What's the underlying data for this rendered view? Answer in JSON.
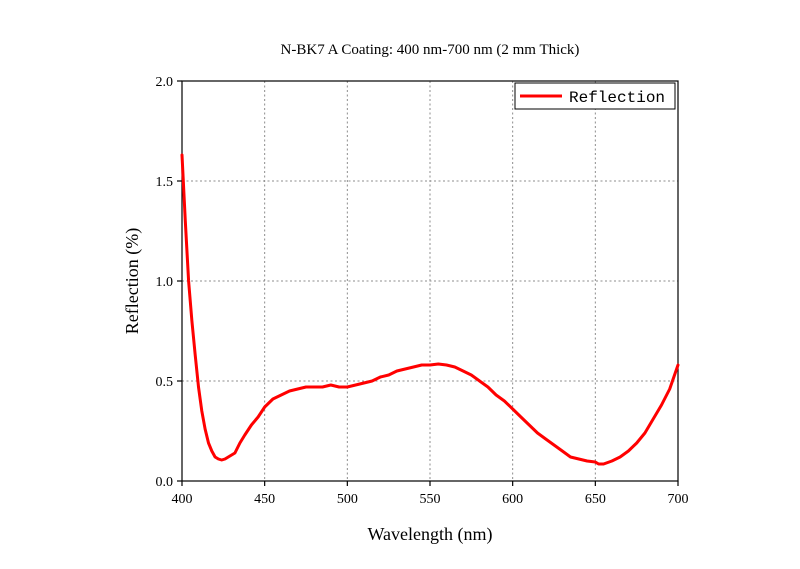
{
  "chart_data": {
    "type": "line",
    "title": "N-BK7 A Coating: 400 nm-700 nm (2 mm Thick)",
    "xlabel": "Wavelength (nm)",
    "ylabel": "Reflection (%)",
    "xlim": [
      400,
      700
    ],
    "ylim": [
      0.0,
      2.0
    ],
    "xticks": [
      "400",
      "450",
      "500",
      "550",
      "600",
      "650",
      "700"
    ],
    "yticks": [
      "0.0",
      "0.5",
      "1.0",
      "1.5",
      "2.0"
    ],
    "grid": true,
    "legend_position": "top-right",
    "series": [
      {
        "name": "Reflection",
        "color": "#ff0000",
        "x": [
          400,
          402,
          404,
          406,
          408,
          410,
          412,
          414,
          416,
          418,
          420,
          422,
          424,
          426,
          428,
          430,
          432,
          435,
          438,
          442,
          446,
          450,
          455,
          460,
          465,
          470,
          475,
          480,
          485,
          490,
          495,
          500,
          505,
          510,
          515,
          520,
          525,
          530,
          535,
          540,
          545,
          550,
          555,
          560,
          565,
          570,
          575,
          580,
          585,
          590,
          595,
          600,
          605,
          610,
          615,
          620,
          625,
          630,
          635,
          640,
          645,
          650,
          652,
          655,
          660,
          665,
          670,
          675,
          680,
          685,
          690,
          695,
          700
        ],
        "y": [
          1.63,
          1.3,
          1.0,
          0.8,
          0.63,
          0.47,
          0.35,
          0.26,
          0.19,
          0.15,
          0.12,
          0.11,
          0.105,
          0.11,
          0.12,
          0.13,
          0.14,
          0.19,
          0.23,
          0.28,
          0.32,
          0.37,
          0.41,
          0.43,
          0.45,
          0.46,
          0.47,
          0.47,
          0.47,
          0.48,
          0.47,
          0.47,
          0.48,
          0.49,
          0.5,
          0.52,
          0.53,
          0.55,
          0.56,
          0.57,
          0.58,
          0.58,
          0.585,
          0.58,
          0.57,
          0.55,
          0.53,
          0.5,
          0.47,
          0.43,
          0.4,
          0.36,
          0.32,
          0.28,
          0.24,
          0.21,
          0.18,
          0.15,
          0.12,
          0.11,
          0.1,
          0.095,
          0.085,
          0.085,
          0.1,
          0.12,
          0.15,
          0.19,
          0.24,
          0.31,
          0.38,
          0.46,
          0.58
        ]
      }
    ]
  }
}
